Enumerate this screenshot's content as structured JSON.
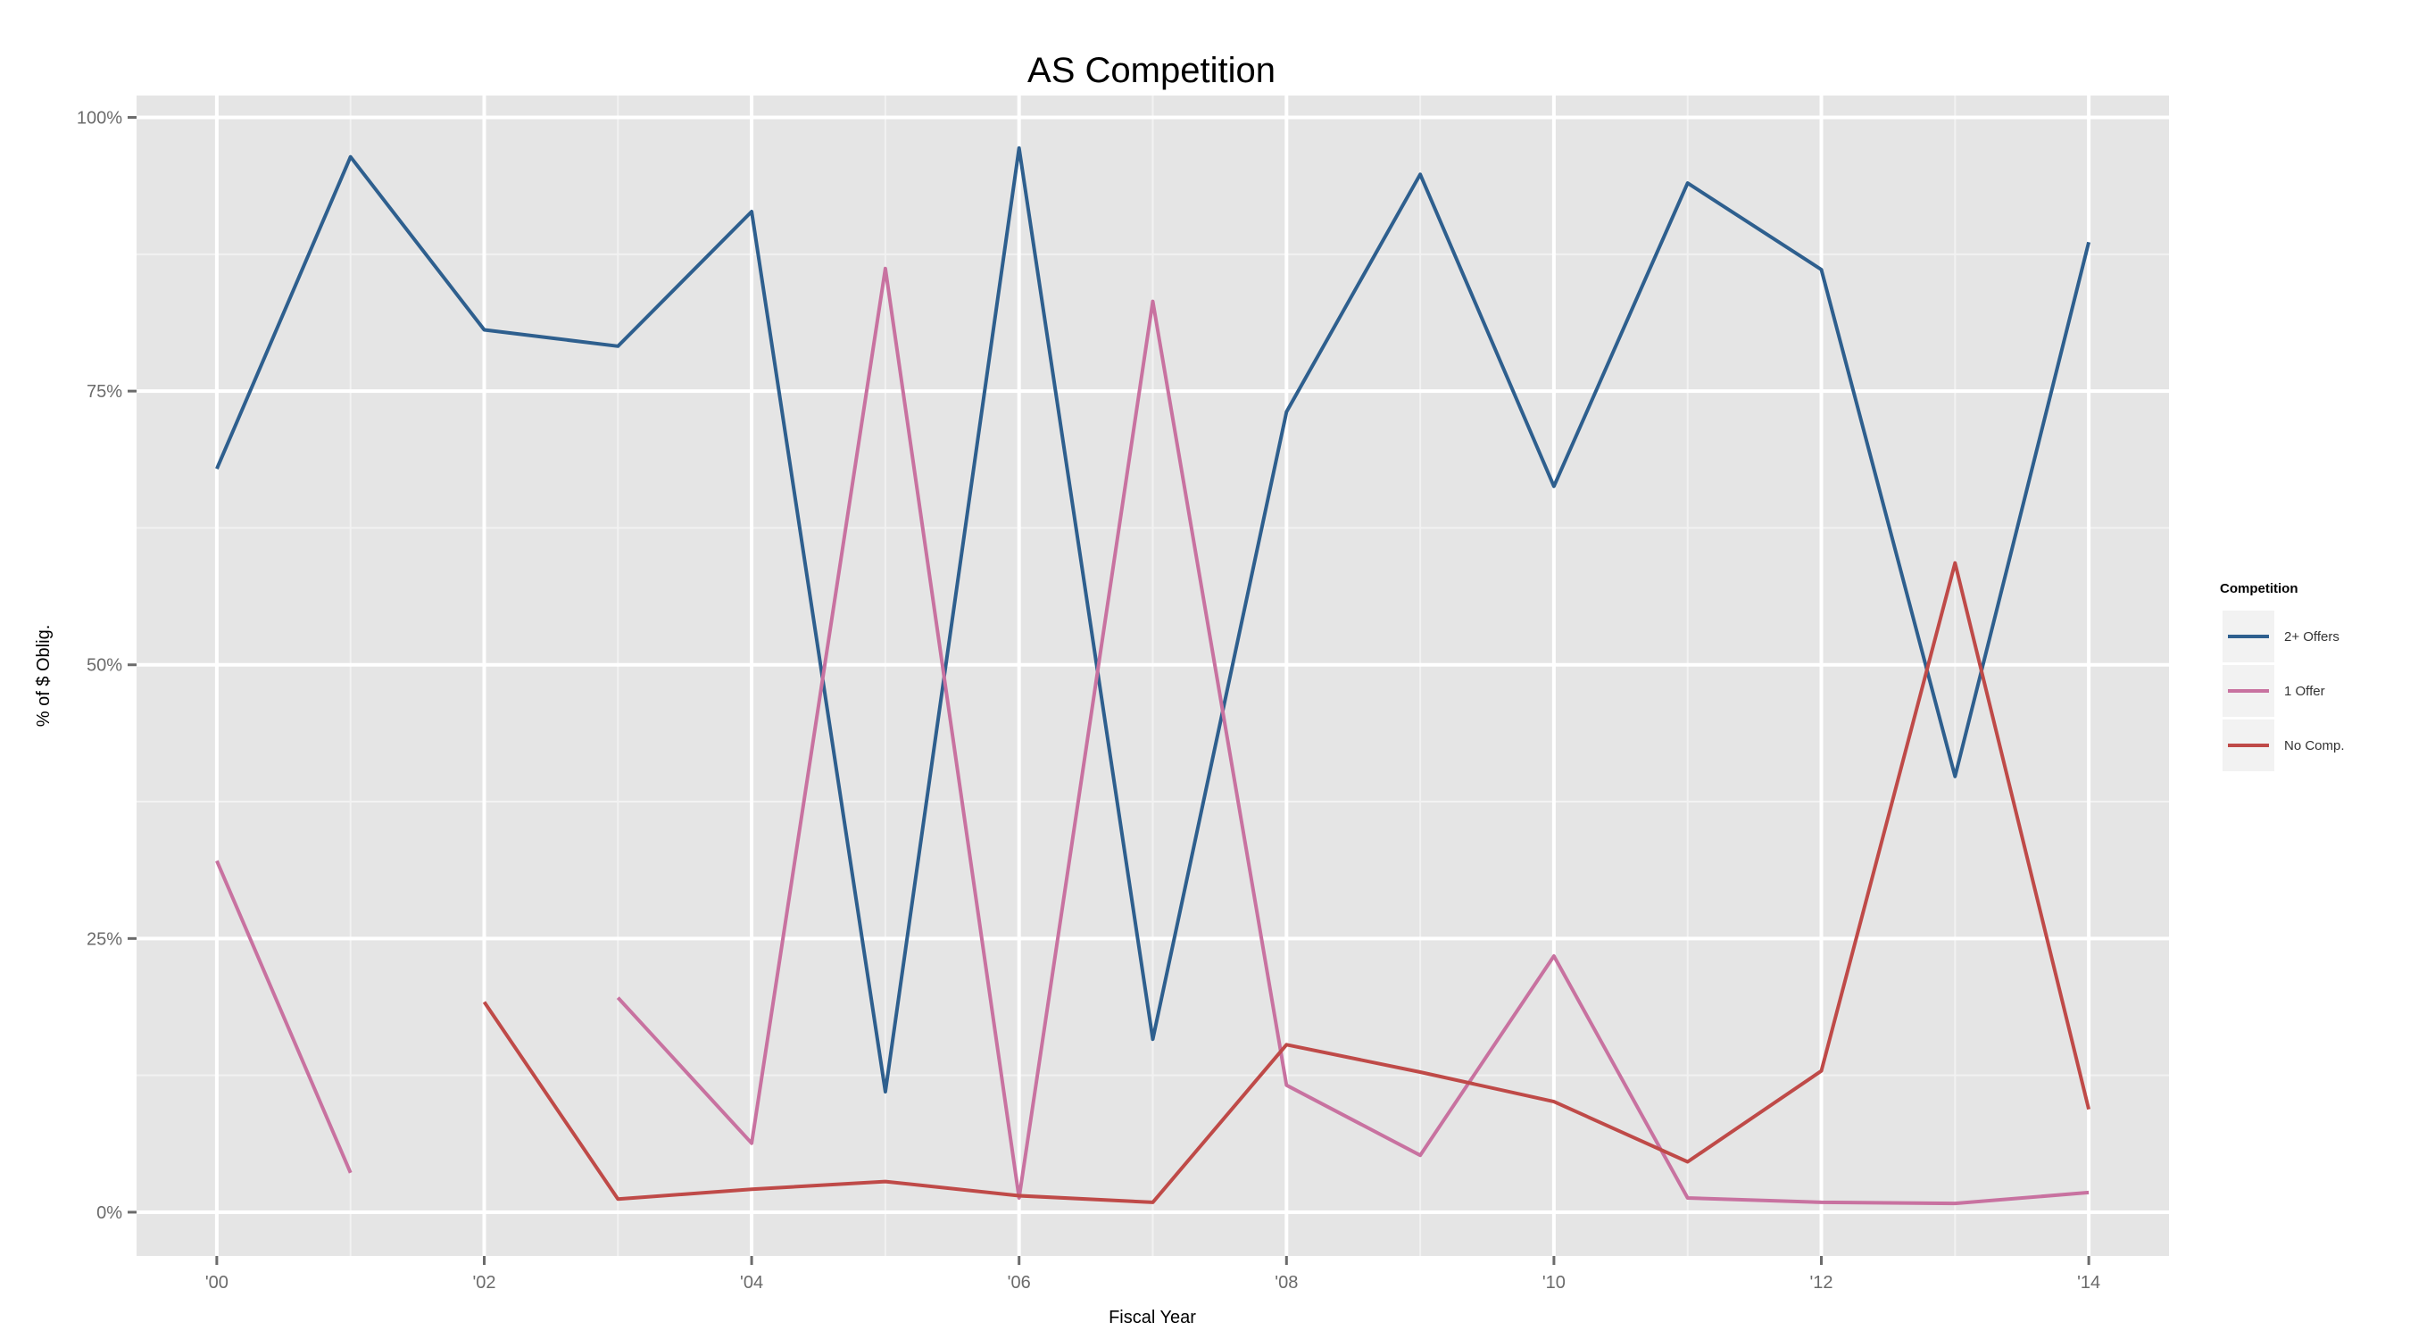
{
  "chart_data": {
    "type": "line",
    "title": "AS Competition",
    "xlabel": "Fiscal Year",
    "ylabel": "% of $ Oblig.",
    "x": [
      2000,
      2001,
      2002,
      2003,
      2004,
      2005,
      2006,
      2007,
      2008,
      2009,
      2010,
      2011,
      2012,
      2013,
      2014
    ],
    "x_tick_labels": [
      "'00",
      "'02",
      "'04",
      "'06",
      "'08",
      "'10",
      "'12",
      "'14"
    ],
    "x_tick_values": [
      2000,
      2002,
      2004,
      2006,
      2008,
      2010,
      2012,
      2014
    ],
    "y_tick_labels": [
      "0%",
      "25%",
      "50%",
      "75%",
      "100%"
    ],
    "y_tick_values": [
      0,
      25,
      50,
      75,
      100
    ],
    "xlim": [
      1999.4,
      2014.6
    ],
    "ylim": [
      -4,
      102
    ],
    "grid": true,
    "legend": {
      "title": "Competition",
      "position": "right"
    },
    "series": [
      {
        "name": "2+ Offers",
        "color": "#2e5f8e",
        "values": [
          67.9,
          96.4,
          80.6,
          79.1,
          91.4,
          11.0,
          97.2,
          15.8,
          73.1,
          94.8,
          66.3,
          94.0,
          86.1,
          39.8,
          88.6
        ]
      },
      {
        "name": "1 Offer",
        "color": "#c872a0",
        "values": [
          32.1,
          3.6,
          null,
          19.6,
          6.3,
          86.2,
          1.3,
          83.2,
          11.6,
          5.2,
          23.4,
          1.3,
          0.9,
          0.8,
          1.8
        ]
      },
      {
        "name": "No Comp.",
        "color": "#bf4a48",
        "values": [
          null,
          null,
          19.2,
          1.2,
          2.1,
          2.8,
          1.5,
          0.9,
          15.3,
          12.8,
          10.1,
          4.6,
          12.9,
          59.3,
          9.4
        ]
      }
    ]
  }
}
